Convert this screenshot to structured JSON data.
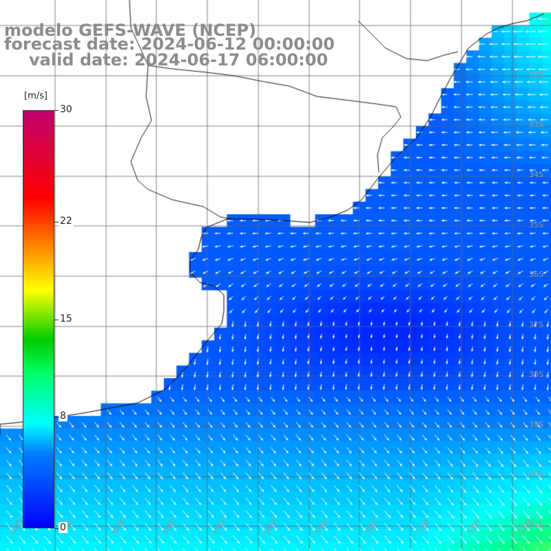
{
  "titles": {
    "line1": "modelo GEFS-WAVE (NCEP)",
    "line2": "forecast date: 2024-06-12 00:00:00",
    "line3": "valid date: 2024-06-17 06:00:00"
  },
  "colorbar": {
    "unit": "[m/s]",
    "ticks": [
      {
        "label": "30",
        "value": 30
      },
      {
        "label": "22",
        "value": 22
      },
      {
        "label": "15",
        "value": 15
      },
      {
        "label": "8",
        "value": 8
      },
      {
        "label": "0",
        "value": 0
      }
    ],
    "colors": [
      "#0000ff",
      "#0080ff",
      "#00ffff",
      "#00ff66",
      "#00cc00",
      "#ffff00",
      "#ff8000",
      "#ff0000",
      "#c0006b"
    ]
  },
  "grid": {
    "lat_labels": [
      "32S",
      "33S",
      "34S",
      "35S",
      "36S",
      "37S",
      "38S",
      "39S",
      "40S",
      "41S"
    ],
    "lon_labels": [
      "61W",
      "60W",
      "59W",
      "58W",
      "57W",
      "56W",
      "55W",
      "54W",
      "53W",
      "52W",
      "51W"
    ]
  },
  "map": {
    "land_color": "#ffffff",
    "coast_color": "#000000",
    "grid_color": "#666666",
    "arrow_color": "#ffffff"
  }
}
